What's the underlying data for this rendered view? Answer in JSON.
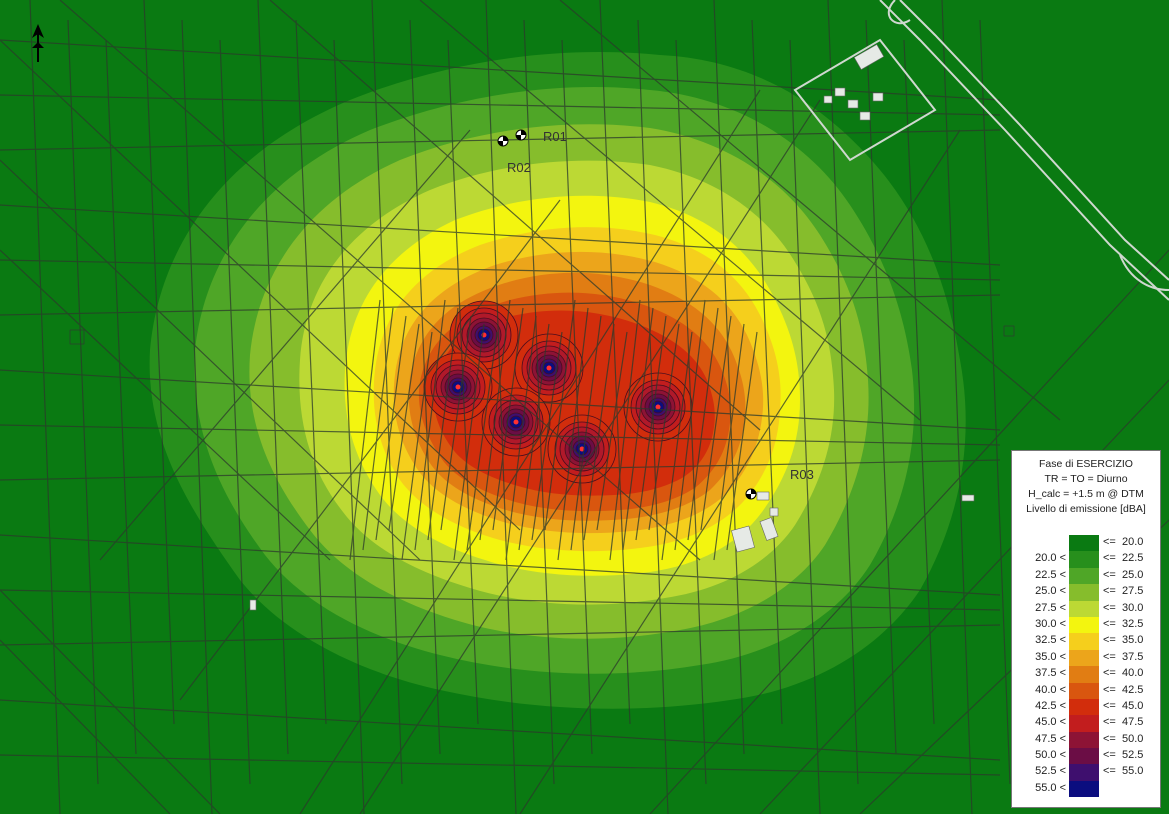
{
  "receptors": [
    "R01",
    "R02",
    "R03"
  ],
  "legend": {
    "title_lines": [
      "Fase di ESERCIZIO",
      "TR = TO = Diurno",
      "H_calc = +1.5 m @ DTM",
      "Livello di emissione [dBA]"
    ],
    "bands": [
      {
        "low": "",
        "high": "20.0",
        "color": "#0a7a12"
      },
      {
        "low": "20.0",
        "high": "22.5",
        "color": "#278f1c"
      },
      {
        "low": "22.5",
        "high": "25.0",
        "color": "#4fa627"
      },
      {
        "low": "25.0",
        "high": "27.5",
        "color": "#86bd2c"
      },
      {
        "low": "27.5",
        "high": "30.0",
        "color": "#bcd934"
      },
      {
        "low": "30.0",
        "high": "32.5",
        "color": "#f3f50f"
      },
      {
        "low": "32.5",
        "high": "35.0",
        "color": "#f5cf1c"
      },
      {
        "low": "35.0",
        "high": "37.5",
        "color": "#eca51b"
      },
      {
        "low": "37.5",
        "high": "40.0",
        "color": "#e17d13"
      },
      {
        "low": "40.0",
        "high": "42.5",
        "color": "#d9560f"
      },
      {
        "low": "42.5",
        "high": "45.0",
        "color": "#d22d0c"
      },
      {
        "low": "45.0",
        "high": "47.5",
        "color": "#c21d1e"
      },
      {
        "low": "47.5",
        "high": "50.0",
        "color": "#8d1335"
      },
      {
        "low": "50.0",
        "high": "52.5",
        "color": "#6b0d45"
      },
      {
        "low": "52.5",
        "high": "55.0",
        "color": "#3e0f6e"
      },
      {
        "low": "55.0",
        "high": "",
        "color": "#0b0d7f"
      }
    ]
  },
  "icons": {
    "north_arrow": "north-arrow-icon",
    "receptor": "receptor-marker-icon"
  }
}
